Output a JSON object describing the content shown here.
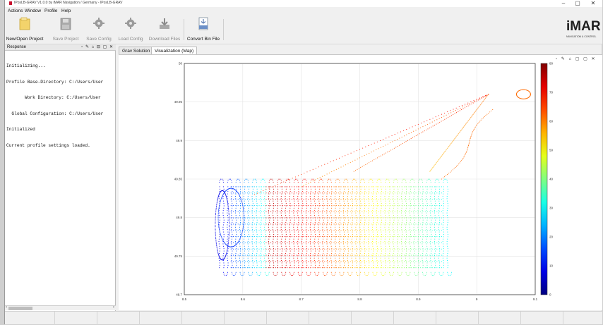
{
  "window": {
    "title": "IPosLB-GRAV V1.0.0 by iMAR Navigation / Germany - IPosLB-GRAV",
    "minimize_glyph": "–",
    "maximize_glyph": "▢",
    "close_glyph": "✕"
  },
  "menu": {
    "items": [
      "Actions",
      "Window",
      "Profile",
      "Help"
    ]
  },
  "toolbar": {
    "buttons": [
      {
        "label": "New/Open Project",
        "icon": "folder-icon",
        "enabled": true
      },
      {
        "label": "Save Project",
        "icon": "floppy-icon",
        "enabled": false
      },
      {
        "label": "Save Config",
        "icon": "gear-save-icon",
        "enabled": false
      },
      {
        "label": "Load Config",
        "icon": "gear-load-icon",
        "enabled": false
      },
      {
        "label": "Download Files",
        "icon": "download-icon",
        "enabled": false
      },
      {
        "label": "Convert Bin File",
        "icon": "bin-file-icon",
        "enabled": true
      }
    ]
  },
  "logo": {
    "text": "iMAR",
    "tagline": "NAVIGATION & CONTROL"
  },
  "response_panel": {
    "title": "Response",
    "icons": "▫ ✎ ⌂ ⊟ ▢ ✕",
    "lines": [
      "Initializing...",
      "Profile Base-Directory: C:/Users/User",
      "       Work Directory: C:/Users/User",
      "  Global Configuration: C:/Users/User",
      "Initialized",
      "Current profile settings loaded."
    ]
  },
  "tabs": [
    {
      "label": "Grav Solution",
      "active": false
    },
    {
      "label": "Visualization (Map)",
      "active": true
    }
  ],
  "figure_icons": "▫ ✎ ⌂ ▢ ▢ ✕",
  "chart_data": {
    "type": "scatter",
    "xlim": [
      8.5,
      9.1
    ],
    "ylim": [
      49.7,
      50.0
    ],
    "x_ticks": [
      "8.5",
      "8.6",
      "8.7",
      "8.8",
      "8.9",
      "9",
      "9.1"
    ],
    "y_ticks": [
      "49.7",
      "49.75",
      "49.8",
      "49.85",
      "49.9",
      "49.95",
      "50"
    ],
    "grid": true,
    "colorbar": {
      "min": 0,
      "max": 80,
      "ticks": [
        "0",
        "10",
        "20",
        "30",
        "40",
        "50",
        "60",
        "70",
        "80"
      ],
      "colormap": "jet"
    },
    "track": {
      "survey_x_range": [
        8.56,
        8.95
      ],
      "survey_y_range": [
        49.735,
        49.84
      ],
      "transit_start": [
        8.94,
        49.85
      ],
      "transit_end": [
        9.08,
        49.96
      ]
    }
  }
}
